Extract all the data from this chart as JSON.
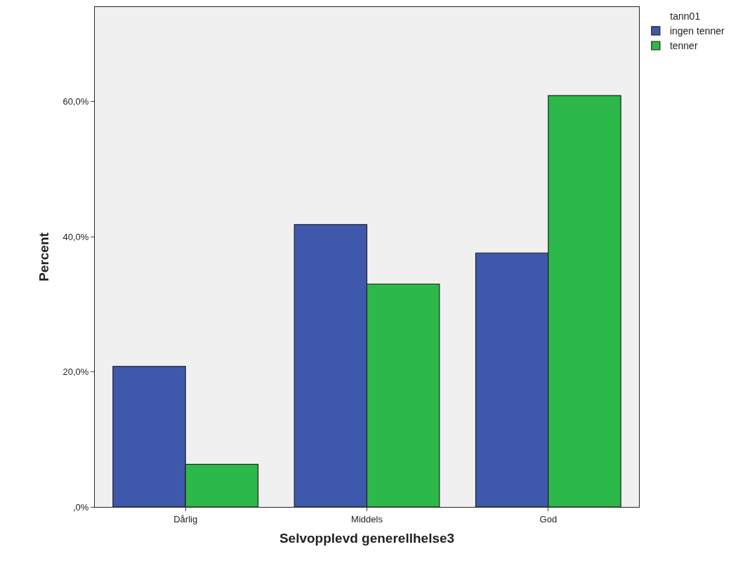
{
  "chart_data": {
    "type": "bar",
    "xlabel": "Selvopplevd generellhelse3",
    "ylabel": "Percent",
    "legend_title": "tann01",
    "legend": "top right",
    "grid": false,
    "categories": [
      "Dårlig",
      "Middels",
      "God"
    ],
    "series": [
      {
        "name": "ingen tenner",
        "color": "#3e58ac",
        "values": [
          20.8,
          41.8,
          37.6
        ]
      },
      {
        "name": "tenner",
        "color": "#2db84a",
        "values": [
          6.3,
          33.0,
          60.9
        ]
      }
    ],
    "ylim": [
      0,
      74
    ],
    "yticks": [
      {
        "value": 0,
        "label": ",0%"
      },
      {
        "value": 20,
        "label": "20,0%"
      },
      {
        "value": 40,
        "label": "40,0%"
      },
      {
        "value": 60,
        "label": "60,0%"
      }
    ]
  }
}
